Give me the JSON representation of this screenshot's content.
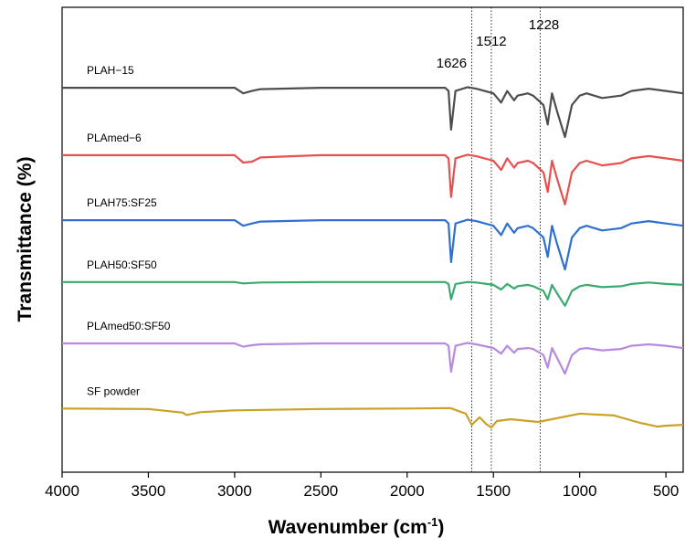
{
  "chart_data": {
    "type": "line",
    "x_label": {
      "text": "Wavenumber (cm",
      "superscript": "-1",
      "suffix": ")"
    },
    "y_label": "Transmittance (%)",
    "xlim": [
      4000,
      400
    ],
    "ylim": [
      0,
      100
    ],
    "xticks": [
      4000,
      3500,
      3000,
      2500,
      2000,
      1500,
      1000,
      500
    ],
    "vlines": [
      1626,
      1512,
      1228
    ],
    "series": [
      {
        "name": "PLAH−15",
        "color": "#4d4d4d",
        "x": [
          4000,
          3700,
          3600,
          3000,
          2950,
          2900,
          2850,
          2500,
          2000,
          1850,
          1780,
          1760,
          1745,
          1720,
          1650,
          1600,
          1500,
          1455,
          1420,
          1380,
          1360,
          1300,
          1270,
          1210,
          1185,
          1160,
          1130,
          1085,
          1045,
          1000,
          960,
          870,
          760,
          700,
          600,
          500,
          400
        ],
        "values": [
          82.7,
          82.7,
          82.7,
          82.7,
          81.5,
          82.0,
          82.4,
          82.7,
          82.7,
          82.7,
          82.7,
          82.0,
          73.7,
          82.0,
          82.8,
          82.5,
          81.5,
          79.5,
          82.0,
          80.0,
          81.0,
          81.5,
          81.0,
          79.0,
          74.8,
          81.5,
          77.5,
          72.1,
          79.0,
          81.0,
          81.5,
          80.5,
          81.0,
          82.0,
          82.5,
          82.0,
          81.5
        ]
      },
      {
        "name": "PLAmed−6",
        "color": "#e8504f",
        "x": [
          4000,
          3700,
          3600,
          3000,
          2950,
          2900,
          2850,
          2500,
          2000,
          1850,
          1780,
          1760,
          1745,
          1720,
          1650,
          1600,
          1500,
          1455,
          1420,
          1380,
          1360,
          1300,
          1270,
          1210,
          1185,
          1160,
          1130,
          1085,
          1045,
          1000,
          960,
          870,
          760,
          700,
          600,
          500,
          400
        ],
        "values": [
          68.2,
          68.2,
          68.2,
          68.2,
          66.6,
          66.8,
          67.7,
          68.2,
          68.2,
          68.2,
          68.2,
          67.5,
          59.2,
          67.5,
          68.3,
          68.0,
          67.0,
          65.0,
          67.5,
          65.5,
          66.5,
          67.0,
          66.5,
          64.5,
          60.3,
          67.0,
          63.0,
          57.6,
          64.5,
          66.5,
          67.0,
          66.0,
          66.5,
          67.5,
          68.0,
          67.5,
          67.0
        ]
      },
      {
        "name": "PLAH75:SF25",
        "color": "#2f6fd0",
        "x": [
          4000,
          3700,
          3600,
          3000,
          2950,
          2900,
          2850,
          2500,
          2000,
          1850,
          1780,
          1760,
          1745,
          1720,
          1650,
          1600,
          1500,
          1455,
          1420,
          1380,
          1360,
          1300,
          1270,
          1210,
          1185,
          1160,
          1130,
          1085,
          1045,
          1000,
          960,
          870,
          760,
          700,
          600,
          500,
          400
        ],
        "values": [
          54.2,
          54.2,
          54.2,
          54.2,
          53.0,
          53.5,
          53.9,
          54.2,
          54.2,
          54.2,
          54.2,
          53.5,
          45.2,
          53.5,
          54.3,
          54.0,
          53.0,
          51.0,
          53.5,
          51.5,
          52.5,
          53.0,
          52.5,
          50.5,
          46.3,
          53.0,
          49.0,
          43.6,
          50.5,
          52.5,
          53.0,
          52.0,
          52.5,
          53.5,
          54.0,
          53.5,
          53.0
        ]
      },
      {
        "name": "PLAH50:SF50",
        "color": "#3aaa6f",
        "x": [
          4000,
          3700,
          3600,
          3000,
          2950,
          2900,
          2850,
          2500,
          2000,
          1850,
          1780,
          1760,
          1745,
          1720,
          1650,
          1600,
          1500,
          1455,
          1420,
          1380,
          1360,
          1300,
          1270,
          1210,
          1185,
          1160,
          1130,
          1085,
          1045,
          1000,
          960,
          870,
          760,
          700,
          600,
          500,
          400
        ],
        "values": [
          40.9,
          40.9,
          40.9,
          40.9,
          40.6,
          40.7,
          40.8,
          40.9,
          40.9,
          40.9,
          40.9,
          40.5,
          37.2,
          40.5,
          40.9,
          40.8,
          40.3,
          39.3,
          40.5,
          39.5,
          40.0,
          40.3,
          40.0,
          39.0,
          37.2,
          40.3,
          38.4,
          35.8,
          39.0,
          40.0,
          40.3,
          39.8,
          40.0,
          40.5,
          40.8,
          40.5,
          40.3
        ]
      },
      {
        "name": "PLAmed50:SF50",
        "color": "#b58ae0",
        "x": [
          4000,
          3700,
          3600,
          3000,
          2950,
          2900,
          2850,
          2500,
          2000,
          1850,
          1780,
          1760,
          1745,
          1720,
          1650,
          1600,
          1500,
          1455,
          1420,
          1380,
          1360,
          1300,
          1270,
          1210,
          1185,
          1160,
          1130,
          1085,
          1045,
          1000,
          960,
          870,
          760,
          700,
          600,
          500,
          400
        ],
        "values": [
          27.7,
          27.7,
          27.7,
          27.7,
          27.0,
          27.3,
          27.5,
          27.7,
          27.7,
          27.7,
          27.7,
          27.2,
          21.6,
          27.2,
          27.8,
          27.5,
          26.7,
          25.5,
          27.2,
          25.7,
          26.5,
          26.7,
          26.5,
          25.2,
          22.5,
          26.7,
          24.5,
          21.2,
          25.2,
          26.5,
          26.7,
          26.2,
          26.5,
          27.2,
          27.5,
          27.2,
          26.7
        ]
      },
      {
        "name": "SF powder",
        "color": "#c9a227",
        "x": [
          4000,
          3500,
          3300,
          3280,
          3200,
          3000,
          2500,
          2000,
          1750,
          1660,
          1626,
          1580,
          1540,
          1512,
          1480,
          1400,
          1240,
          1000,
          800,
          650,
          550,
          500,
          400
        ],
        "values": [
          13.7,
          13.6,
          12.8,
          12.3,
          12.9,
          13.3,
          13.6,
          13.7,
          13.8,
          12.6,
          10.2,
          11.8,
          10.3,
          9.6,
          11.0,
          11.4,
          10.8,
          12.6,
          12.2,
          10.6,
          9.8,
          10.0,
          10.2
        ]
      }
    ]
  }
}
